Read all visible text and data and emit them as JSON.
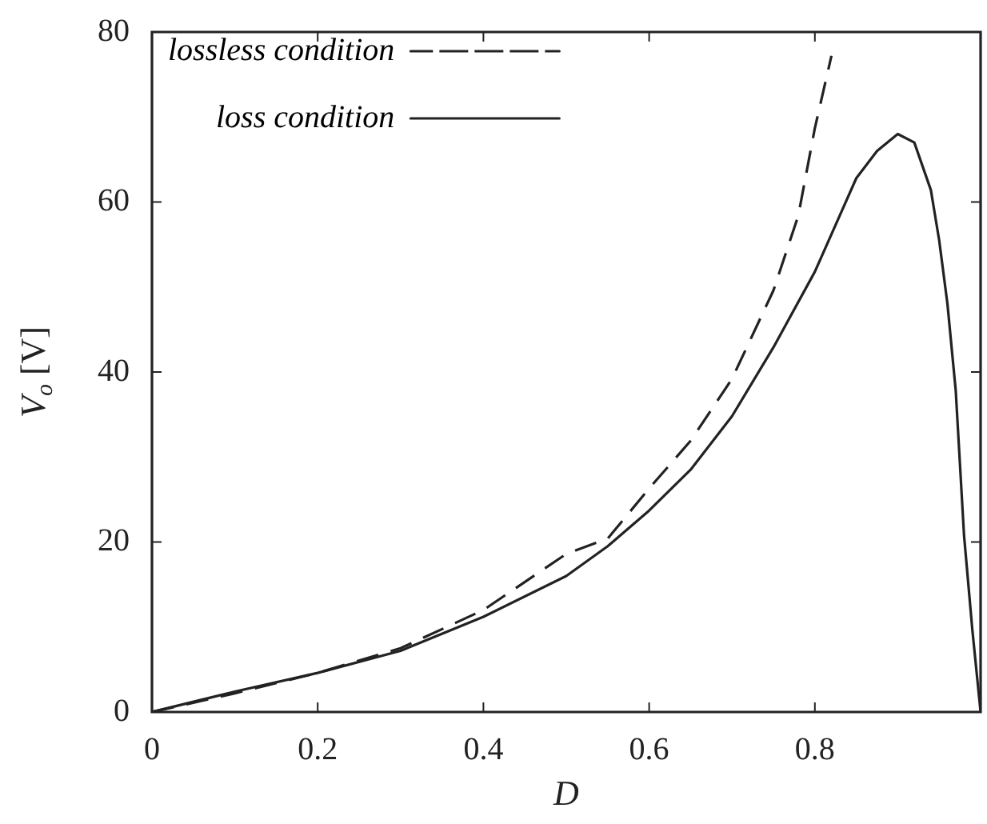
{
  "chart_data": {
    "type": "line",
    "xlabel": "D",
    "ylabel": "V$_{o}$ [V]",
    "xlim": [
      0,
      1
    ],
    "xticks": [
      0,
      0.2,
      0.4,
      0.6,
      0.8,
      {
        "value": 1,
        "label": null
      }
    ],
    "ylim": [
      0,
      80
    ],
    "yticks": [
      0,
      20,
      40,
      60,
      80
    ],
    "grid": false,
    "legend": "top left",
    "marker": "none",
    "series": [
      {
        "name": "lossless condition",
        "color": "#222222",
        "line_style": "dashed",
        "x": [
          0,
          0.1,
          0.2,
          0.3,
          0.4,
          0.5,
          0.55,
          0.6,
          0.65,
          0.7,
          0.75,
          0.78,
          0.8,
          0.82
        ],
        "values": [
          0,
          2.2,
          4.6,
          7.5,
          12,
          18.6,
          20.4,
          26.3,
          31.9,
          39.2,
          49.6,
          58.4,
          68.7,
          77.2
        ]
      },
      {
        "name": "loss condition",
        "color": "#222222",
        "line_style": "solid",
        "x": [
          0,
          0.1,
          0.2,
          0.3,
          0.4,
          0.5,
          0.55,
          0.6,
          0.65,
          0.7,
          0.75,
          0.8,
          0.85,
          0.875,
          0.9,
          0.92,
          0.94,
          0.95,
          0.96,
          0.97,
          0.98,
          0.99,
          1
        ],
        "values": [
          0,
          2.4,
          4.6,
          7.2,
          11.2,
          16,
          19.5,
          23.7,
          28.5,
          34.8,
          42.9,
          51.8,
          62.8,
          66,
          68,
          67,
          61.4,
          55.5,
          48,
          37.8,
          20.8,
          9.7,
          0
        ]
      }
    ]
  }
}
